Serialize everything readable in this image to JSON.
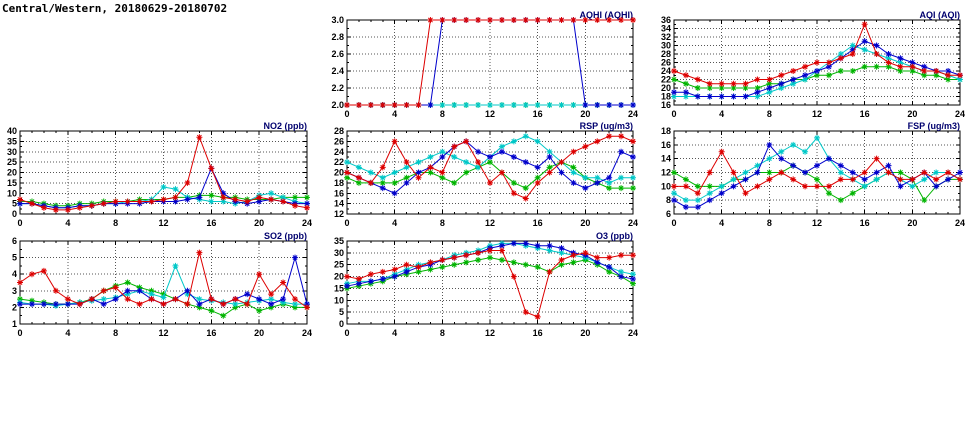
{
  "page_title": "Central/Western, 20180629-20180702",
  "colors": {
    "red": "#dd0000",
    "blue": "#0000cc",
    "green": "#00b400",
    "cyan": "#00c8c8",
    "grid": "#555555",
    "chart_title": "#00006e"
  },
  "chart_data": [
    {
      "id": "aqhi",
      "type": "line",
      "title": "AQHI (AQHI)",
      "x_range": [
        0,
        24
      ],
      "xticks": [
        0,
        4,
        8,
        12,
        16,
        20,
        24
      ],
      "ylim": [
        2.0,
        3.0
      ],
      "yticks": [
        2.0,
        2.2,
        2.4,
        2.6,
        2.8,
        3.0
      ],
      "ytick_labels": [
        "2.0",
        "2.2",
        "2.4",
        "2.6",
        "2.8",
        "3.0"
      ],
      "grid": true,
      "legend": "none",
      "series": [
        {
          "name": "green",
          "color": "#00b400",
          "values": [
            2,
            2,
            2,
            2,
            2,
            2,
            2,
            2,
            2,
            2,
            2,
            2,
            2,
            2,
            2,
            2,
            2,
            2,
            2,
            2,
            2,
            2,
            2,
            2,
            2
          ]
        },
        {
          "name": "cyan",
          "color": "#00c8c8",
          "values": [
            2,
            2,
            2,
            2,
            2,
            2,
            2,
            2,
            2,
            2,
            2,
            2,
            2,
            2,
            2,
            2,
            2,
            2,
            2,
            2,
            2,
            2,
            2,
            2,
            2
          ]
        },
        {
          "name": "blue",
          "color": "#0000cc",
          "values": [
            2,
            2,
            2,
            2,
            2,
            2,
            2,
            2,
            3,
            3,
            3,
            3,
            3,
            3,
            3,
            3,
            3,
            3,
            3,
            3,
            2,
            2,
            2,
            2,
            2
          ]
        },
        {
          "name": "red",
          "color": "#dd0000",
          "values": [
            2,
            2,
            2,
            2,
            2,
            2,
            2,
            3,
            3,
            3,
            3,
            3,
            3,
            3,
            3,
            3,
            3,
            3,
            3,
            3,
            3,
            3,
            3,
            3,
            3
          ]
        }
      ]
    },
    {
      "id": "aqi",
      "type": "line",
      "title": "AQI (AQI)",
      "x_range": [
        0,
        24
      ],
      "xticks": [
        0,
        4,
        8,
        12,
        16,
        20,
        24
      ],
      "ylim": [
        16,
        36
      ],
      "yticks": [
        16,
        18,
        20,
        22,
        24,
        26,
        28,
        30,
        32,
        34,
        36
      ],
      "ytick_labels": [
        "16",
        "18",
        "20",
        "22",
        "24",
        "26",
        "28",
        "30",
        "32",
        "34",
        "36"
      ],
      "grid": true,
      "legend": "none",
      "series": [
        {
          "name": "green",
          "color": "#00b400",
          "values": [
            22,
            21,
            20,
            20,
            20,
            20,
            20,
            20,
            21,
            21,
            22,
            22,
            23,
            23,
            24,
            24,
            25,
            25,
            25,
            24,
            24,
            23,
            23,
            22,
            22
          ]
        },
        {
          "name": "cyan",
          "color": "#00c8c8",
          "values": [
            18,
            18,
            18,
            18,
            18,
            18,
            18,
            18,
            19,
            20,
            21,
            22,
            24,
            26,
            28,
            30,
            29,
            28,
            27,
            26,
            25,
            24,
            24,
            23,
            22
          ]
        },
        {
          "name": "blue",
          "color": "#0000cc",
          "values": [
            19,
            19,
            18,
            18,
            18,
            18,
            18,
            19,
            20,
            21,
            22,
            23,
            24,
            25,
            27,
            29,
            31,
            30,
            28,
            27,
            26,
            25,
            24,
            24,
            23
          ]
        },
        {
          "name": "red",
          "color": "#dd0000",
          "values": [
            24,
            23,
            22,
            21,
            21,
            21,
            21,
            22,
            22,
            23,
            24,
            25,
            26,
            26,
            27,
            28,
            35,
            28,
            26,
            25,
            25,
            24,
            24,
            23,
            23
          ]
        }
      ]
    },
    {
      "id": "no2",
      "type": "line",
      "title": "NO2 (ppb)",
      "x_range": [
        0,
        24
      ],
      "xticks": [
        0,
        4,
        8,
        12,
        16,
        20,
        24
      ],
      "ylim": [
        0,
        40
      ],
      "yticks": [
        0,
        5,
        10,
        15,
        20,
        25,
        30,
        35,
        40
      ],
      "ytick_labels": [
        "0",
        "5",
        "10",
        "15",
        "20",
        "25",
        "30",
        "35",
        "40"
      ],
      "grid": true,
      "legend": "none",
      "series": [
        {
          "name": "green",
          "color": "#00b400",
          "values": [
            6,
            6,
            5,
            4,
            4,
            5,
            5,
            6,
            6,
            6,
            7,
            7,
            7,
            8,
            8,
            9,
            9,
            8,
            8,
            7,
            7,
            7,
            8,
            8,
            8
          ]
        },
        {
          "name": "cyan",
          "color": "#00c8c8",
          "values": [
            5,
            5,
            4,
            3,
            3,
            4,
            4,
            5,
            5,
            6,
            6,
            7,
            13,
            12,
            8,
            7,
            6,
            6,
            5,
            6,
            9,
            10,
            8,
            6,
            5
          ]
        },
        {
          "name": "blue",
          "color": "#0000cc",
          "values": [
            5,
            5,
            4,
            3,
            3,
            4,
            4,
            5,
            5,
            5,
            5,
            6,
            6,
            6,
            7,
            8,
            22,
            10,
            6,
            5,
            6,
            7,
            6,
            5,
            5
          ]
        },
        {
          "name": "red",
          "color": "#dd0000",
          "values": [
            7,
            5,
            3,
            2,
            2,
            3,
            4,
            5,
            6,
            6,
            6,
            6,
            7,
            8,
            15,
            37,
            22,
            8,
            7,
            6,
            8,
            7,
            6,
            4,
            3
          ]
        }
      ]
    },
    {
      "id": "rsp",
      "type": "line",
      "title": "RSP (ug/m3)",
      "x_range": [
        0,
        24
      ],
      "xticks": [
        0,
        4,
        8,
        12,
        16,
        20,
        24
      ],
      "ylim": [
        12,
        28
      ],
      "yticks": [
        12,
        14,
        16,
        18,
        20,
        22,
        24,
        26,
        28
      ],
      "ytick_labels": [
        "12",
        "14",
        "16",
        "18",
        "20",
        "22",
        "24",
        "26",
        "28"
      ],
      "grid": true,
      "legend": "none",
      "series": [
        {
          "name": "green",
          "color": "#00b400",
          "values": [
            19,
            18,
            18,
            18,
            18,
            19,
            20,
            20,
            19,
            18,
            20,
            21,
            22,
            20,
            18,
            17,
            19,
            21,
            22,
            21,
            19,
            18,
            17,
            17,
            17
          ]
        },
        {
          "name": "cyan",
          "color": "#00c8c8",
          "values": [
            22,
            21,
            20,
            19,
            20,
            21,
            22,
            23,
            24,
            23,
            22,
            21,
            23,
            25,
            26,
            27,
            26,
            24,
            22,
            20,
            19,
            19,
            18,
            19,
            19
          ]
        },
        {
          "name": "blue",
          "color": "#0000cc",
          "values": [
            20,
            19,
            18,
            17,
            16,
            18,
            20,
            21,
            23,
            25,
            26,
            24,
            23,
            24,
            23,
            22,
            21,
            23,
            20,
            18,
            17,
            18,
            19,
            24,
            23
          ]
        },
        {
          "name": "red",
          "color": "#dd0000",
          "values": [
            20,
            19,
            18,
            21,
            26,
            22,
            19,
            21,
            20,
            25,
            26,
            22,
            18,
            20,
            16,
            15,
            18,
            20,
            22,
            24,
            25,
            26,
            27,
            27,
            26
          ]
        }
      ]
    },
    {
      "id": "fsp",
      "type": "line",
      "title": "FSP (ug/m3)",
      "x_range": [
        0,
        24
      ],
      "xticks": [
        0,
        4,
        8,
        12,
        16,
        20,
        24
      ],
      "ylim": [
        6,
        18
      ],
      "yticks": [
        6,
        8,
        10,
        12,
        14,
        16,
        18
      ],
      "ytick_labels": [
        "6",
        "8",
        "10",
        "12",
        "14",
        "16",
        "18"
      ],
      "grid": true,
      "legend": "none",
      "series": [
        {
          "name": "green",
          "color": "#00b400",
          "values": [
            12,
            11,
            10,
            10,
            10,
            11,
            11,
            12,
            12,
            12,
            13,
            12,
            11,
            9,
            8,
            9,
            10,
            11,
            12,
            12,
            11,
            8,
            10,
            11,
            11
          ]
        },
        {
          "name": "cyan",
          "color": "#00c8c8",
          "values": [
            9,
            8,
            8,
            9,
            10,
            11,
            12,
            13,
            14,
            15,
            16,
            15,
            17,
            14,
            12,
            11,
            10,
            11,
            12,
            11,
            10,
            11,
            12,
            12,
            11
          ]
        },
        {
          "name": "blue",
          "color": "#0000cc",
          "values": [
            8,
            7,
            7,
            8,
            9,
            10,
            11,
            12,
            16,
            14,
            13,
            12,
            13,
            14,
            13,
            12,
            11,
            12,
            13,
            10,
            11,
            12,
            10,
            11,
            12
          ]
        },
        {
          "name": "red",
          "color": "#dd0000",
          "values": [
            10,
            10,
            9,
            12,
            15,
            12,
            9,
            10,
            11,
            12,
            11,
            10,
            10,
            10,
            11,
            11,
            12,
            14,
            12,
            11,
            11,
            12,
            11,
            12,
            11
          ]
        }
      ]
    },
    {
      "id": "so2",
      "type": "line",
      "title": "SO2 (ppb)",
      "x_range": [
        0,
        24
      ],
      "xticks": [
        0,
        4,
        8,
        12,
        16,
        20,
        24
      ],
      "ylim": [
        1,
        6
      ],
      "yticks": [
        1,
        2,
        3,
        4,
        5,
        6
      ],
      "ytick_labels": [
        "1",
        "2",
        "3",
        "4",
        "5",
        "6"
      ],
      "grid": true,
      "legend": "none",
      "series": [
        {
          "name": "green",
          "color": "#00b400",
          "values": [
            2.5,
            2.4,
            2.3,
            2.2,
            2.2,
            2.3,
            2.5,
            3,
            3.3,
            3.5,
            3.2,
            3,
            2.8,
            2.5,
            2.2,
            2,
            1.8,
            1.5,
            2,
            2.2,
            1.8,
            2,
            2.2,
            2,
            2
          ]
        },
        {
          "name": "cyan",
          "color": "#00c8c8",
          "values": [
            2.3,
            2.2,
            2.2,
            2.1,
            2.2,
            2.3,
            2.4,
            2.5,
            2.6,
            2.8,
            3,
            2.8,
            2.6,
            4.5,
            2.8,
            2.5,
            2.4,
            2.3,
            2.2,
            2.3,
            2.4,
            2.5,
            2.3,
            2.2,
            2.2
          ]
        },
        {
          "name": "blue",
          "color": "#0000cc",
          "values": [
            2.2,
            2.2,
            2.2,
            2.2,
            2.2,
            2.2,
            2.5,
            2.2,
            2.5,
            3,
            3,
            2.5,
            2.2,
            2.5,
            3,
            2.2,
            2.5,
            2.2,
            2.5,
            2.8,
            2.5,
            2.2,
            2.5,
            5,
            2.2
          ]
        },
        {
          "name": "red",
          "color": "#dd0000",
          "values": [
            3.5,
            4,
            4.2,
            3,
            2.5,
            2.2,
            2.5,
            3,
            3.2,
            2.5,
            2.2,
            2.5,
            2.2,
            2.5,
            2.2,
            5.3,
            2.5,
            2.2,
            2.5,
            2.2,
            4,
            2.8,
            3.5,
            2.5,
            2
          ]
        }
      ]
    },
    {
      "id": "o3",
      "type": "line",
      "title": "O3 (ppb)",
      "x_range": [
        0,
        24
      ],
      "xticks": [
        0,
        4,
        8,
        12,
        16,
        20,
        24
      ],
      "ylim": [
        0,
        35
      ],
      "yticks": [
        0,
        5,
        10,
        15,
        20,
        25,
        30,
        35
      ],
      "ytick_labels": [
        "0",
        "5",
        "10",
        "15",
        "20",
        "25",
        "30",
        "35"
      ],
      "grid": true,
      "legend": "none",
      "series": [
        {
          "name": "green",
          "color": "#00b400",
          "values": [
            15,
            16,
            17,
            18,
            20,
            21,
            22,
            23,
            24,
            25,
            26,
            27,
            28,
            27,
            26,
            25,
            24,
            22,
            25,
            26,
            27,
            25,
            22,
            20,
            17
          ]
        },
        {
          "name": "cyan",
          "color": "#00c8c8",
          "values": [
            17,
            18,
            18,
            19,
            21,
            23,
            25,
            26,
            27,
            29,
            30,
            31,
            33,
            34,
            34,
            33,
            32,
            31,
            30,
            29,
            28,
            26,
            24,
            22,
            21
          ]
        },
        {
          "name": "blue",
          "color": "#0000cc",
          "values": [
            16,
            17,
            18,
            19,
            20,
            22,
            24,
            25,
            27,
            28,
            29,
            30,
            32,
            33,
            34,
            34,
            33,
            33,
            32,
            30,
            29,
            26,
            24,
            20,
            19
          ]
        },
        {
          "name": "red",
          "color": "#dd0000",
          "values": [
            20,
            19,
            21,
            22,
            23,
            25,
            24,
            26,
            27,
            28,
            29,
            30,
            31,
            31,
            20,
            5,
            3,
            22,
            27,
            29,
            30,
            28,
            28,
            29,
            29
          ]
        }
      ]
    }
  ]
}
